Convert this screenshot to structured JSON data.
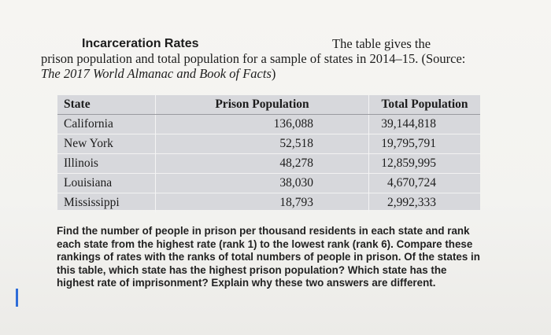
{
  "problem": {
    "heading": "Incarceration Rates",
    "intro_first": "The table gives the",
    "intro_rest_prefix": "prison population and total population for a sample of states in 2014–15. (Source: ",
    "source_title": "The 2017 World Almanac and Book of Facts",
    "intro_rest_suffix": ")"
  },
  "table": {
    "headers": [
      "State",
      "Prison Population",
      "Total Population"
    ],
    "rows": [
      {
        "state": "California",
        "prison": "136,088",
        "total": "39,144,818"
      },
      {
        "state": "New York",
        "prison": "52,518",
        "total": "19,795,791"
      },
      {
        "state": "Illinois",
        "prison": "48,278",
        "total": "12,859,995"
      },
      {
        "state": "Louisiana",
        "prison": "38,030",
        "total": "4,670,724"
      },
      {
        "state": "Mississippi",
        "prison": "18,793",
        "total": "2,992,333"
      }
    ]
  },
  "question": "Find the number of people in prison per thousand residents in each state and rank each state from the highest rate (rank 1) to the lowest rank (rank 6). Compare these rankings of rates with the ranks of total numbers of people in prison. Of the states in this table, which state has the highest prison population? Which state has the highest rate of imprisonment? Explain why these two answers are different.",
  "colors": {
    "table_bg": "#d7d8dc",
    "marker": "#2f6dd8"
  }
}
